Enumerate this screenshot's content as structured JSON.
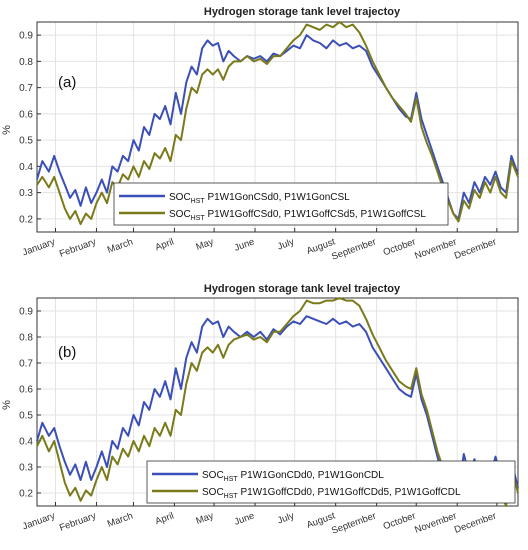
{
  "chart_data": [
    {
      "type": "line",
      "title": "Hydrogen storage tank level trajectoy",
      "panel_label": "(a)",
      "ylabel": "%",
      "ylim": [
        0.15,
        0.95
      ],
      "yticks": [
        0.2,
        0.3,
        0.4,
        0.5,
        0.6,
        0.7,
        0.8,
        0.9
      ],
      "xlim": [
        1,
        365
      ],
      "month_ticks": [
        {
          "label": "January",
          "day": 15
        },
        {
          "label": "February",
          "day": 46
        },
        {
          "label": "March",
          "day": 74
        },
        {
          "label": "April",
          "day": 105
        },
        {
          "label": "May",
          "day": 135
        },
        {
          "label": "June",
          "day": 166
        },
        {
          "label": "July",
          "day": 196
        },
        {
          "label": "August",
          "day": 227
        },
        {
          "label": "September",
          "day": 258
        },
        {
          "label": "October",
          "day": 288
        },
        {
          "label": "November",
          "day": 319
        },
        {
          "label": "December",
          "day": 349
        }
      ],
      "grid": true,
      "legend_position": "bottom-center",
      "series": [
        {
          "name_main": "SOC",
          "name_sub": "HST",
          "name_rest": " P1W1GonCSd0, P1W1GonCSL",
          "color": "#3b4fb8",
          "x": [
            1,
            5,
            10,
            14,
            18,
            22,
            26,
            30,
            34,
            38,
            42,
            46,
            50,
            54,
            58,
            62,
            66,
            70,
            74,
            78,
            82,
            86,
            90,
            94,
            98,
            102,
            106,
            110,
            114,
            118,
            122,
            126,
            130,
            134,
            138,
            142,
            146,
            150,
            155,
            160,
            165,
            170,
            175,
            180,
            185,
            190,
            195,
            200,
            205,
            210,
            215,
            220,
            225,
            230,
            235,
            240,
            245,
            250,
            255,
            260,
            265,
            270,
            275,
            280,
            284,
            288,
            292,
            296,
            300,
            304,
            308,
            312,
            316,
            320,
            324,
            328,
            332,
            336,
            340,
            344,
            348,
            352,
            356,
            360,
            365
          ],
          "y": [
            0.35,
            0.42,
            0.38,
            0.44,
            0.38,
            0.33,
            0.28,
            0.31,
            0.25,
            0.32,
            0.26,
            0.3,
            0.35,
            0.3,
            0.4,
            0.38,
            0.44,
            0.42,
            0.5,
            0.46,
            0.55,
            0.52,
            0.6,
            0.58,
            0.63,
            0.56,
            0.68,
            0.6,
            0.72,
            0.78,
            0.75,
            0.85,
            0.88,
            0.86,
            0.87,
            0.8,
            0.84,
            0.82,
            0.8,
            0.82,
            0.81,
            0.82,
            0.8,
            0.83,
            0.82,
            0.84,
            0.86,
            0.85,
            0.9,
            0.88,
            0.87,
            0.85,
            0.88,
            0.86,
            0.87,
            0.85,
            0.86,
            0.84,
            0.78,
            0.74,
            0.7,
            0.66,
            0.62,
            0.59,
            0.58,
            0.68,
            0.58,
            0.52,
            0.46,
            0.4,
            0.34,
            0.28,
            0.22,
            0.2,
            0.3,
            0.26,
            0.34,
            0.3,
            0.36,
            0.33,
            0.38,
            0.32,
            0.3,
            0.44,
            0.37
          ]
        },
        {
          "name_main": "SOC",
          "name_sub": "HST",
          "name_rest": " P1W1GoffCSd0, P1W1GoffCSd5, P1W1GoffCSL",
          "color": "#7a7a1a",
          "x": [
            1,
            5,
            10,
            14,
            18,
            22,
            26,
            30,
            34,
            38,
            42,
            46,
            50,
            54,
            58,
            62,
            66,
            70,
            74,
            78,
            82,
            86,
            90,
            94,
            98,
            102,
            106,
            110,
            114,
            118,
            122,
            126,
            130,
            134,
            138,
            142,
            146,
            150,
            155,
            160,
            165,
            170,
            175,
            180,
            185,
            190,
            195,
            200,
            205,
            210,
            215,
            220,
            225,
            230,
            235,
            240,
            245,
            250,
            255,
            260,
            265,
            270,
            275,
            280,
            284,
            288,
            292,
            296,
            300,
            304,
            308,
            312,
            316,
            320,
            324,
            328,
            332,
            336,
            340,
            344,
            348,
            352,
            356,
            360,
            365
          ],
          "y": [
            0.33,
            0.36,
            0.32,
            0.36,
            0.3,
            0.24,
            0.2,
            0.23,
            0.18,
            0.22,
            0.2,
            0.26,
            0.3,
            0.26,
            0.34,
            0.32,
            0.37,
            0.35,
            0.4,
            0.36,
            0.42,
            0.39,
            0.45,
            0.43,
            0.47,
            0.42,
            0.52,
            0.5,
            0.62,
            0.7,
            0.68,
            0.75,
            0.77,
            0.75,
            0.77,
            0.73,
            0.78,
            0.8,
            0.8,
            0.82,
            0.8,
            0.81,
            0.79,
            0.82,
            0.82,
            0.85,
            0.88,
            0.9,
            0.94,
            0.93,
            0.92,
            0.94,
            0.93,
            0.95,
            0.93,
            0.94,
            0.91,
            0.86,
            0.8,
            0.75,
            0.7,
            0.66,
            0.63,
            0.6,
            0.57,
            0.66,
            0.55,
            0.49,
            0.44,
            0.38,
            0.32,
            0.27,
            0.22,
            0.19,
            0.27,
            0.24,
            0.31,
            0.28,
            0.34,
            0.3,
            0.36,
            0.3,
            0.28,
            0.42,
            0.36
          ]
        }
      ]
    },
    {
      "type": "line",
      "title": "Hydrogen storage tank level trajectoy",
      "panel_label": "(b)",
      "ylabel": "%",
      "ylim": [
        0.15,
        0.95
      ],
      "yticks": [
        0.2,
        0.3,
        0.4,
        0.5,
        0.6,
        0.7,
        0.8,
        0.9
      ],
      "xlim": [
        1,
        365
      ],
      "month_ticks": [
        {
          "label": "January",
          "day": 15
        },
        {
          "label": "February",
          "day": 46
        },
        {
          "label": "March",
          "day": 74
        },
        {
          "label": "April",
          "day": 105
        },
        {
          "label": "May",
          "day": 135
        },
        {
          "label": "June",
          "day": 166
        },
        {
          "label": "July",
          "day": 196
        },
        {
          "label": "August",
          "day": 227
        },
        {
          "label": "September",
          "day": 258
        },
        {
          "label": "October",
          "day": 288
        },
        {
          "label": "November",
          "day": 319
        },
        {
          "label": "December",
          "day": 349
        }
      ],
      "grid": true,
      "legend_position": "bottom-center",
      "series": [
        {
          "name_main": "SOC",
          "name_sub": "HST",
          "name_rest": " P1W1GonCDd0, P1W1GonCDL",
          "color": "#3b4fb8",
          "x": [
            1,
            5,
            10,
            14,
            18,
            22,
            26,
            30,
            34,
            38,
            42,
            46,
            50,
            54,
            58,
            62,
            66,
            70,
            74,
            78,
            82,
            86,
            90,
            94,
            98,
            102,
            106,
            110,
            114,
            118,
            122,
            126,
            130,
            134,
            138,
            142,
            146,
            150,
            155,
            160,
            165,
            170,
            175,
            180,
            185,
            190,
            195,
            200,
            205,
            210,
            215,
            220,
            225,
            230,
            235,
            240,
            245,
            250,
            255,
            260,
            265,
            270,
            275,
            280,
            284,
            288,
            292,
            296,
            300,
            304,
            308,
            312,
            316,
            320,
            324,
            328,
            332,
            336,
            340,
            344,
            348,
            352,
            356,
            360,
            365
          ],
          "y": [
            0.4,
            0.47,
            0.42,
            0.45,
            0.38,
            0.32,
            0.27,
            0.31,
            0.25,
            0.32,
            0.25,
            0.3,
            0.36,
            0.3,
            0.4,
            0.37,
            0.45,
            0.42,
            0.5,
            0.46,
            0.55,
            0.52,
            0.6,
            0.57,
            0.63,
            0.56,
            0.68,
            0.6,
            0.72,
            0.78,
            0.74,
            0.84,
            0.87,
            0.85,
            0.86,
            0.8,
            0.84,
            0.82,
            0.8,
            0.82,
            0.8,
            0.82,
            0.79,
            0.83,
            0.81,
            0.84,
            0.86,
            0.85,
            0.88,
            0.87,
            0.86,
            0.85,
            0.87,
            0.85,
            0.86,
            0.84,
            0.85,
            0.82,
            0.76,
            0.72,
            0.68,
            0.64,
            0.6,
            0.58,
            0.57,
            0.66,
            0.56,
            0.5,
            0.42,
            0.34,
            0.27,
            0.22,
            0.19,
            0.21,
            0.35,
            0.27,
            0.33,
            0.26,
            0.3,
            0.26,
            0.34,
            0.27,
            0.24,
            0.32,
            0.22
          ]
        },
        {
          "name_main": "SOC",
          "name_sub": "HST",
          "name_rest": " P1W1GoffCDd0, P1W1GoffCDd5, P1W1GoffCDL",
          "color": "#7a7a1a",
          "x": [
            1,
            5,
            10,
            14,
            18,
            22,
            26,
            30,
            34,
            38,
            42,
            46,
            50,
            54,
            58,
            62,
            66,
            70,
            74,
            78,
            82,
            86,
            90,
            94,
            98,
            102,
            106,
            110,
            114,
            118,
            122,
            126,
            130,
            134,
            138,
            142,
            146,
            150,
            155,
            160,
            165,
            170,
            175,
            180,
            185,
            190,
            195,
            200,
            205,
            210,
            215,
            220,
            225,
            230,
            235,
            240,
            245,
            250,
            255,
            260,
            265,
            270,
            275,
            280,
            284,
            288,
            292,
            296,
            300,
            304,
            308,
            312,
            316,
            320,
            324,
            328,
            332,
            336,
            340,
            344,
            348,
            352,
            356,
            360,
            365
          ],
          "y": [
            0.38,
            0.42,
            0.36,
            0.4,
            0.32,
            0.24,
            0.19,
            0.22,
            0.17,
            0.21,
            0.19,
            0.25,
            0.3,
            0.25,
            0.34,
            0.31,
            0.37,
            0.34,
            0.4,
            0.36,
            0.42,
            0.38,
            0.45,
            0.42,
            0.47,
            0.42,
            0.52,
            0.5,
            0.62,
            0.7,
            0.67,
            0.74,
            0.76,
            0.74,
            0.77,
            0.72,
            0.77,
            0.79,
            0.8,
            0.81,
            0.79,
            0.8,
            0.78,
            0.82,
            0.82,
            0.85,
            0.88,
            0.9,
            0.94,
            0.93,
            0.93,
            0.94,
            0.94,
            0.95,
            0.94,
            0.94,
            0.92,
            0.87,
            0.81,
            0.76,
            0.71,
            0.67,
            0.63,
            0.61,
            0.6,
            0.68,
            0.58,
            0.52,
            0.44,
            0.36,
            0.3,
            0.24,
            0.2,
            0.18,
            0.3,
            0.24,
            0.3,
            0.22,
            0.26,
            0.22,
            0.28,
            0.2,
            0.15,
            0.3,
            0.2
          ]
        }
      ]
    }
  ]
}
